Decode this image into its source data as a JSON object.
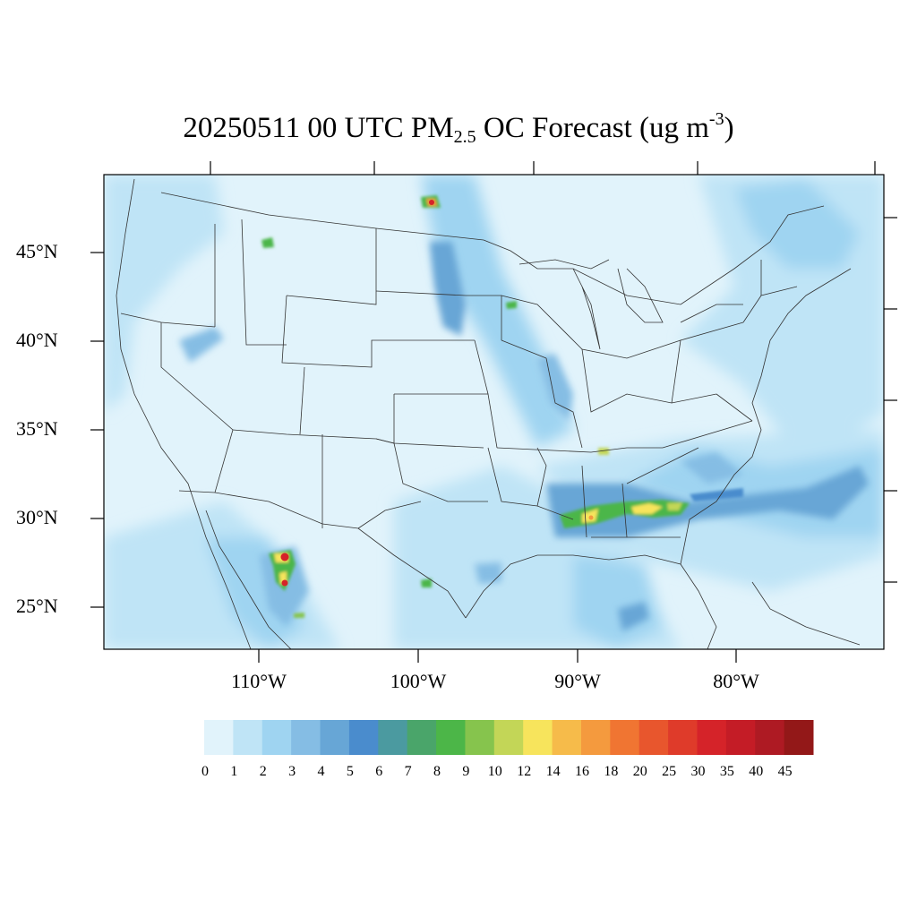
{
  "title": {
    "prefix": "20250511 00 UTC PM",
    "subscript": "2.5",
    "middle": " OC Forecast (ug m",
    "superscript": "-3",
    "suffix": ")"
  },
  "map": {
    "region": "Contiguous United States",
    "lat_labels": [
      "45°N",
      "40°N",
      "35°N",
      "30°N",
      "25°N"
    ],
    "lon_labels": [
      "110°W",
      "100°W",
      "90°W",
      "80°W"
    ],
    "boundary_color": "#333333",
    "background_color": "#ffffff"
  },
  "colorbar": {
    "labels": [
      "0",
      "1",
      "2",
      "3",
      "4",
      "5",
      "6",
      "7",
      "8",
      "9",
      "10",
      "12",
      "14",
      "16",
      "18",
      "20",
      "25",
      "30",
      "35",
      "40",
      "45"
    ],
    "colors": [
      "#e1f3fb",
      "#bfe4f6",
      "#9fd4f1",
      "#85bde4",
      "#67a6d6",
      "#4a8ccd",
      "#4b9aa0",
      "#4aa56a",
      "#4cb648",
      "#86c44d",
      "#c3d657",
      "#f7e45c",
      "#f6bb4a",
      "#f49a3e",
      "#f07532",
      "#e8562d",
      "#df3b2a",
      "#d52329",
      "#c41c26",
      "#ae1a23",
      "#931818"
    ]
  },
  "hotspots": [
    {
      "name": "northern-mexico-fire",
      "lon": -108.5,
      "lat": 27.5,
      "value": 45
    },
    {
      "name": "southeast-smoke-band",
      "lon": -87,
      "lat": 30.8,
      "value": 14
    },
    {
      "name": "louisiana-smoke",
      "lon": -90.5,
      "lat": 30.1,
      "value": 12
    },
    {
      "name": "north-dakota-fire",
      "lon": -99,
      "lat": 48.8,
      "value": 40
    },
    {
      "name": "montana-patch",
      "lon": -112.5,
      "lat": 46.5,
      "value": 8
    },
    {
      "name": "atlantic-smoke-plume",
      "lon": -78,
      "lat": 31.2,
      "value": 5
    },
    {
      "name": "mississippi-valley-band",
      "lon": -95.5,
      "lat": 41.5,
      "value": 5
    }
  ]
}
